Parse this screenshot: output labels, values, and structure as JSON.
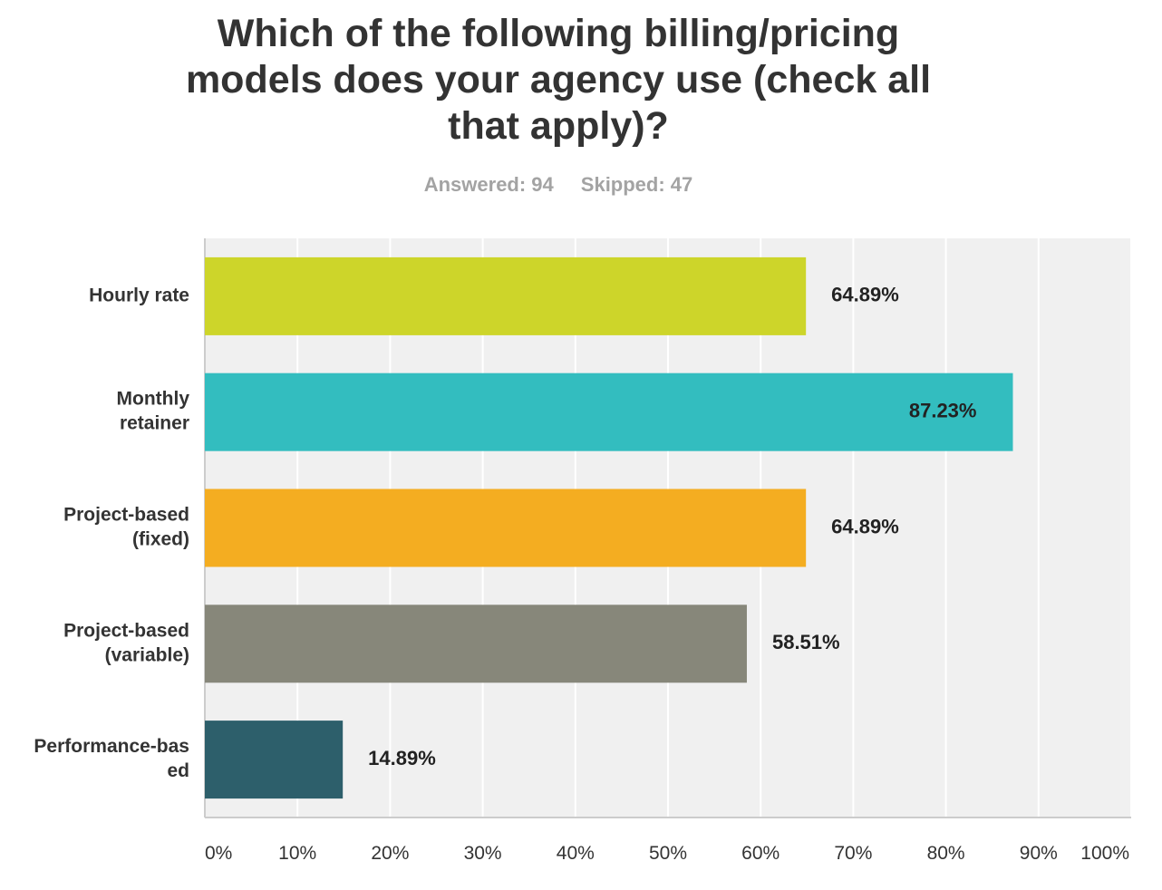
{
  "title_lines": [
    "Which of the following billing/pricing",
    "models does your agency use (check all",
    "that apply)?"
  ],
  "stats": {
    "answered": "Answered: 94",
    "skipped": "Skipped: 47"
  },
  "colors": {
    "plot_background": "#f0f0f0",
    "gridline": "#ffffff",
    "axis": "#cccccc"
  },
  "chart_data": {
    "type": "bar",
    "orientation": "horizontal",
    "title": "Which of the following billing/pricing models does your agency use (check all that apply)?",
    "categories": [
      [
        "Hourly rate"
      ],
      [
        "Monthly",
        "retainer"
      ],
      [
        "Project-based",
        "(fixed)"
      ],
      [
        "Project-based",
        "(variable)"
      ],
      [
        "Performance-bas",
        "ed"
      ]
    ],
    "values": [
      64.89,
      87.23,
      64.89,
      58.51,
      14.89
    ],
    "value_labels": [
      "64.89%",
      "87.23%",
      "64.89%",
      "58.51%",
      "14.89%"
    ],
    "bar_colors": [
      "#cdd52a",
      "#33bdbf",
      "#f4ad21",
      "#87877a",
      "#2d5f6b"
    ],
    "xlim": [
      0,
      100
    ],
    "ticks": [
      "0%",
      "10%",
      "20%",
      "30%",
      "40%",
      "50%",
      "60%",
      "70%",
      "80%",
      "90%",
      "100%"
    ],
    "grid": true,
    "legend": "none"
  }
}
